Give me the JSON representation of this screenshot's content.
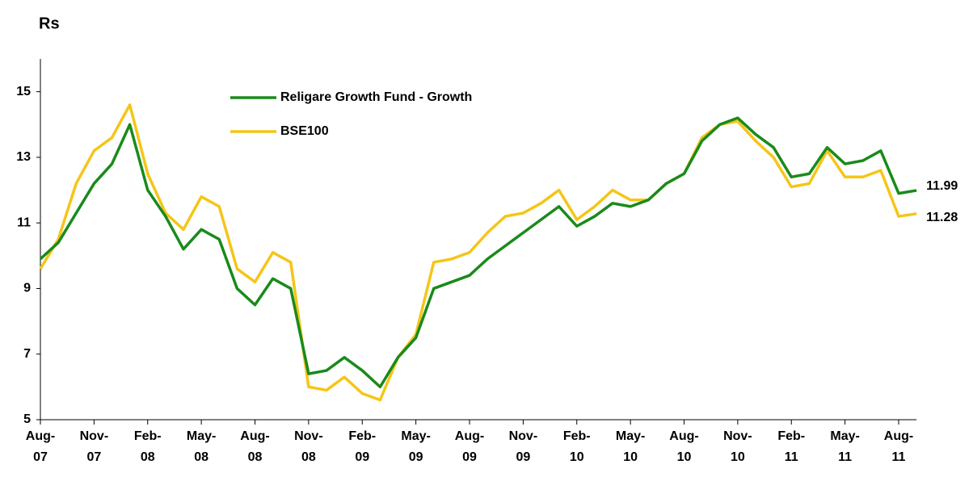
{
  "chart_data": {
    "type": "line",
    "y_label": "Rs",
    "x": [
      "Aug-07",
      "Sep-07",
      "Oct-07",
      "Nov-07",
      "Dec-07",
      "Jan-08",
      "Feb-08",
      "Mar-08",
      "Apr-08",
      "May-08",
      "Jun-08",
      "Jul-08",
      "Aug-08",
      "Sep-08",
      "Oct-08",
      "Nov-08",
      "Dec-08",
      "Jan-09",
      "Feb-09",
      "Mar-09",
      "Apr-09",
      "May-09",
      "Jun-09",
      "Jul-09",
      "Aug-09",
      "Sep-09",
      "Oct-09",
      "Nov-09",
      "Dec-09",
      "Jan-10",
      "Feb-10",
      "Mar-10",
      "Apr-10",
      "May-10",
      "Jun-10",
      "Jul-10",
      "Aug-10",
      "Sep-10",
      "Oct-10",
      "Nov-10",
      "Dec-10",
      "Jan-11",
      "Feb-11",
      "Mar-11",
      "Apr-11",
      "May-11",
      "Jun-11",
      "Jul-11",
      "Aug-11",
      "Sep-11"
    ],
    "series": [
      {
        "name": "Religare Growth Fund - Growth",
        "color": "#1a8a1a",
        "values": [
          9.9,
          10.4,
          11.3,
          12.2,
          12.8,
          14.0,
          12.0,
          11.2,
          10.2,
          10.8,
          10.5,
          9.0,
          8.5,
          9.3,
          9.0,
          6.4,
          6.5,
          6.9,
          6.5,
          6.0,
          6.9,
          7.5,
          9.0,
          9.2,
          9.4,
          9.9,
          10.3,
          10.7,
          11.1,
          11.5,
          10.9,
          11.2,
          11.6,
          11.5,
          11.7,
          12.2,
          12.5,
          13.5,
          14.0,
          14.2,
          13.7,
          13.3,
          12.4,
          12.5,
          13.3,
          12.8,
          12.9,
          13.2,
          11.9,
          11.99
        ]
      },
      {
        "name": "BSE100",
        "color": "#f5c518",
        "values": [
          9.6,
          10.5,
          12.2,
          13.2,
          13.6,
          14.6,
          12.5,
          11.3,
          10.8,
          11.8,
          11.5,
          9.6,
          9.2,
          10.1,
          9.8,
          6.0,
          5.9,
          6.3,
          5.8,
          5.6,
          6.9,
          7.6,
          9.8,
          9.9,
          10.1,
          10.7,
          11.2,
          11.3,
          11.6,
          12.0,
          11.1,
          11.5,
          12.0,
          11.7,
          11.7,
          12.2,
          12.5,
          13.6,
          14.0,
          14.1,
          13.5,
          13.0,
          12.1,
          12.2,
          13.2,
          12.4,
          12.4,
          12.6,
          11.2,
          11.28
        ]
      }
    ],
    "ylim": [
      5,
      16
    ],
    "yticks": [
      5,
      7,
      9,
      11,
      13,
      15
    ],
    "grid": false,
    "xticks": [
      {
        "value": "Aug-07",
        "label": "Aug-\n07"
      },
      {
        "value": "Nov-07",
        "label": "Nov-\n07"
      },
      {
        "value": "Feb-08",
        "label": "Feb-\n08"
      },
      {
        "value": "May-08",
        "label": "May-\n08"
      },
      {
        "value": "Aug-08",
        "label": "Aug-\n08"
      },
      {
        "value": "Nov-08",
        "label": "Nov-\n08"
      },
      {
        "value": "Feb-09",
        "label": "Feb-\n09"
      },
      {
        "value": "May-09",
        "label": "May-\n09"
      },
      {
        "value": "Aug-09",
        "label": "Aug-\n09"
      },
      {
        "value": "Nov-09",
        "label": "Nov-\n09"
      },
      {
        "value": "Feb-10",
        "label": "Feb-\n10"
      },
      {
        "value": "May-10",
        "label": "May-\n10"
      },
      {
        "value": "Aug-10",
        "label": "Aug-\n10"
      },
      {
        "value": "Nov-10",
        "label": "Nov-\n10"
      },
      {
        "value": "Feb-11",
        "label": "Feb-\n11"
      },
      {
        "value": "May-11",
        "label": "May-\n11"
      },
      {
        "value": "Aug-11",
        "label": "Aug-\n11"
      }
    ]
  }
}
